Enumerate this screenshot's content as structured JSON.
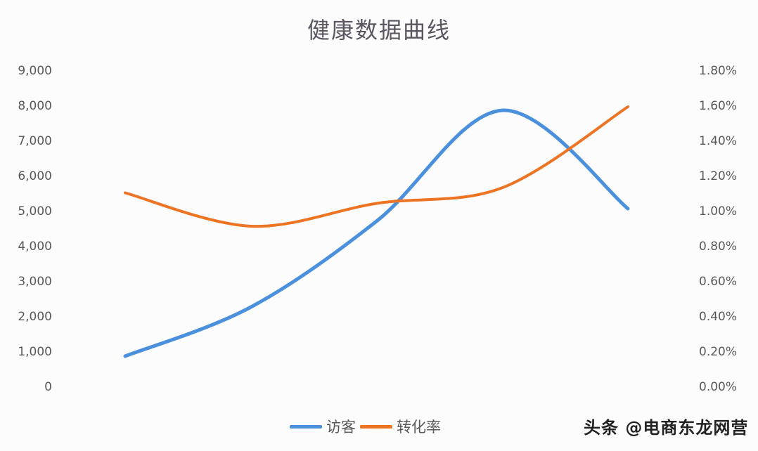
{
  "header": {
    "title": "健康数据曲线"
  },
  "axes": {
    "left_ticks": [
      "9,000",
      "8,000",
      "7,000",
      "6,000",
      "5,000",
      "4,000",
      "3,000",
      "2,000",
      "1,000",
      "0"
    ],
    "right_ticks": [
      "1.80%",
      "1.60%",
      "1.40%",
      "1.20%",
      "1.00%",
      "0.80%",
      "0.60%",
      "0.40%",
      "0.20%",
      "0.00%"
    ]
  },
  "legend": {
    "items": [
      {
        "label": "访客",
        "color": "#4a90dc"
      },
      {
        "label": "转化率",
        "color": "#ed7423"
      }
    ]
  },
  "watermark": "头条 @电商东龙网营",
  "colors": {
    "visitors": "#4a90dc",
    "conversion": "#ed7423",
    "text": "#595959"
  },
  "chart_data": {
    "type": "line",
    "title": "健康数据曲线",
    "x": [
      1,
      2,
      3,
      4,
      5
    ],
    "categories": [
      "",
      "",
      "",
      "",
      ""
    ],
    "series": [
      {
        "name": "访客",
        "axis": "left",
        "values": [
          900,
          2300,
          4750,
          7900,
          5100
        ],
        "color": "#4a90dc",
        "smooth": true
      },
      {
        "name": "转化率",
        "axis": "right",
        "values": [
          1.11,
          0.92,
          1.05,
          1.14,
          1.6
        ],
        "unit": "%",
        "color": "#ed7423",
        "smooth": true
      }
    ],
    "xlabel": "",
    "ylabel": "",
    "y2label": "",
    "ylim": [
      0,
      9000
    ],
    "y2lim": [
      0.0,
      1.8
    ],
    "grid": false,
    "legend_position": "bottom"
  }
}
